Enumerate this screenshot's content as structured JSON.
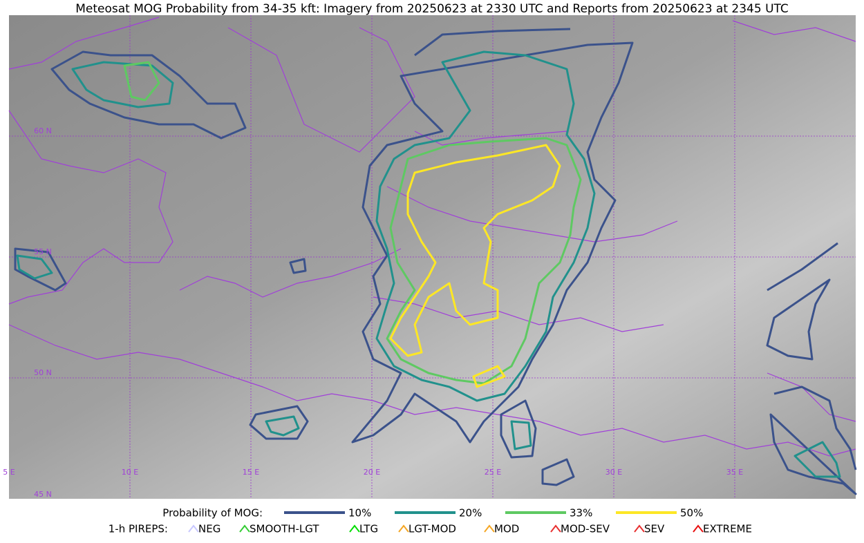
{
  "title": "Meteosat MOG Probability from 34-35 kft: Imagery from 20250623 at 2330 UTC and Reports from 20250623 at 2345 UTC",
  "map": {
    "lat_labels": [
      "60 N",
      "55 N",
      "50 N",
      "45 N"
    ],
    "lon_labels": [
      "5 E",
      "10 E",
      "15 E",
      "20 E",
      "25 E",
      "30 E",
      "35 E"
    ]
  },
  "legend": {
    "probability_title": "Probability of MOG:",
    "levels": [
      {
        "label": "10%",
        "color": "#3b528b"
      },
      {
        "label": "20%",
        "color": "#21918c"
      },
      {
        "label": "33%",
        "color": "#5ec962"
      },
      {
        "label": "50%",
        "color": "#fde725"
      }
    ],
    "pireps_title": "1-h PIREPS:",
    "pireps": [
      {
        "label": "NEG",
        "color": "#c8c8ff"
      },
      {
        "label": "SMOOTH-LGT",
        "color": "#33cc33"
      },
      {
        "label": "LTG",
        "color": "#00dd00"
      },
      {
        "label": "LGT-MOD",
        "color": "#f5a623"
      },
      {
        "label": "MOD",
        "color": "#f5a623"
      },
      {
        "label": "MOD-SEV",
        "color": "#e83030"
      },
      {
        "label": "SEV",
        "color": "#e83030"
      },
      {
        "label": "EXTREME",
        "color": "#e81010"
      }
    ]
  }
}
